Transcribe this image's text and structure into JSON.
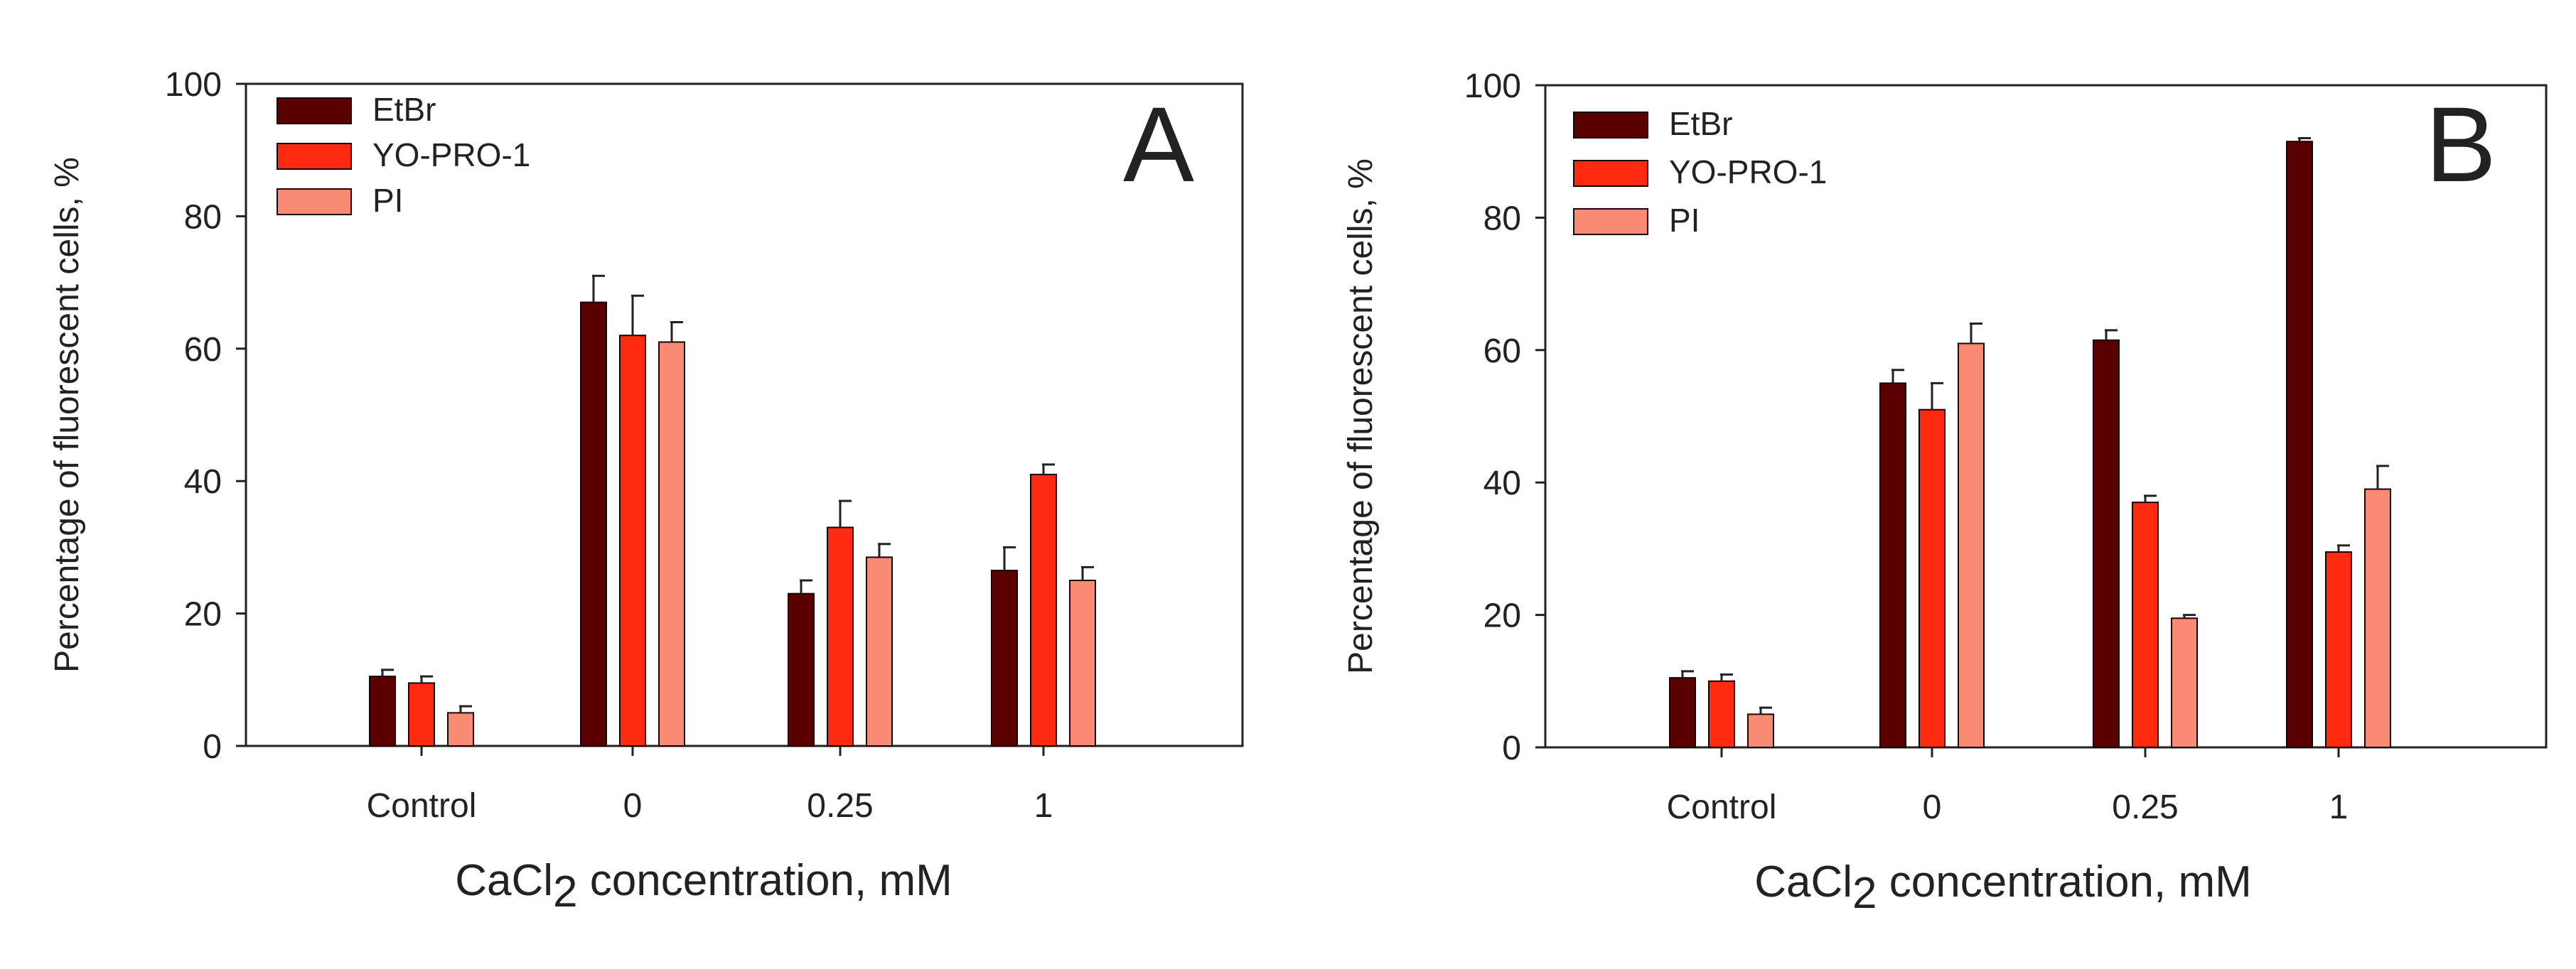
{
  "colors": {
    "EtBr": "#5a0000",
    "YO-PRO-1": "#ff2a10",
    "PI": "#f98a74",
    "axis": "#222222"
  },
  "chart_data": [
    {
      "type": "bar",
      "panel_label": "A",
      "categories": [
        "Control",
        "0",
        "0.25",
        "1"
      ],
      "series": [
        {
          "name": "EtBr",
          "values": [
            10.5,
            67,
            23,
            26.5
          ],
          "errors": [
            1,
            4,
            2,
            3.5
          ]
        },
        {
          "name": "YO-PRO-1",
          "values": [
            9.5,
            62,
            33,
            41
          ],
          "errors": [
            1,
            6,
            4,
            1.5
          ]
        },
        {
          "name": "PI",
          "values": [
            5,
            61,
            28.5,
            25
          ],
          "errors": [
            1,
            3,
            2,
            2
          ]
        }
      ],
      "ylabel": "Percentage of fluorescent cells, %",
      "xlabel_main": "CaCl",
      "xlabel_sub": "2",
      "xlabel_rest": " concentration, mM",
      "ylim": [
        0,
        100
      ],
      "yticks": [
        "0",
        "20",
        "40",
        "60",
        "80",
        "100"
      ]
    },
    {
      "type": "bar",
      "panel_label": "B",
      "categories": [
        "Control",
        "0",
        "0.25",
        "1"
      ],
      "series": [
        {
          "name": "EtBr",
          "values": [
            10.5,
            55,
            61.5,
            91.5
          ],
          "errors": [
            1,
            2,
            1.5,
            0.5
          ]
        },
        {
          "name": "YO-PRO-1",
          "values": [
            10,
            51,
            37,
            29.5
          ],
          "errors": [
            1,
            4,
            1,
            1
          ]
        },
        {
          "name": "PI",
          "values": [
            5,
            61,
            19.5,
            39
          ],
          "errors": [
            1,
            3,
            0.5,
            3.5
          ]
        }
      ],
      "ylabel": "Percentage of fluorescent cells, %",
      "xlabel_main": "CaCl",
      "xlabel_sub": "2",
      "xlabel_rest": " concentration, mM",
      "ylim": [
        0,
        100
      ],
      "yticks": [
        "0",
        "20",
        "40",
        "60",
        "80",
        "100"
      ]
    }
  ]
}
